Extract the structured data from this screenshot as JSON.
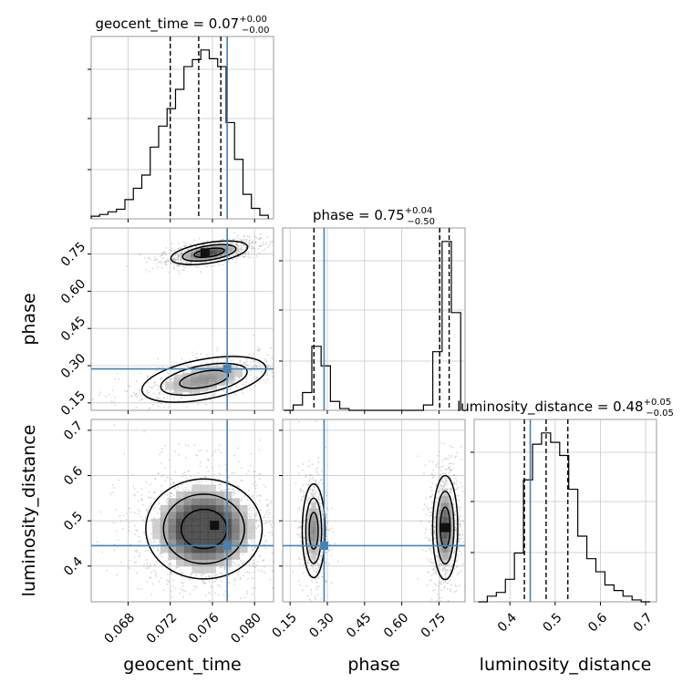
{
  "chart_data": {
    "type": "corner",
    "parameters": [
      {
        "name": "geocent_time",
        "axis_label": "geocent_time",
        "range": [
          0.0645,
          0.0818
        ],
        "ticks": [
          0.068,
          0.072,
          0.076,
          0.08
        ],
        "tick_labels": [
          "0.068",
          "0.072",
          "0.076",
          "0.080"
        ],
        "title": "geocent_time = 0.07",
        "title_upper": "+0.00",
        "title_lower": "−0.00",
        "quantiles": [
          0.072,
          0.0747,
          0.0768
        ],
        "truth": 0.0774,
        "histogram": {
          "edges": [
            0.0645,
            0.0653,
            0.0661,
            0.0669,
            0.0677,
            0.0685,
            0.0693,
            0.0701,
            0.0709,
            0.0717,
            0.0725,
            0.0733,
            0.0741,
            0.0749,
            0.0757,
            0.0765,
            0.0773,
            0.0781,
            0.0789,
            0.0797,
            0.0805,
            0.0813
          ],
          "counts": [
            0.015,
            0.025,
            0.04,
            0.055,
            0.11,
            0.175,
            0.25,
            0.41,
            0.53,
            0.63,
            0.74,
            0.87,
            0.91,
            0.965,
            0.915,
            0.87,
            0.55,
            0.34,
            0.14,
            0.06,
            0.02
          ]
        }
      },
      {
        "name": "phase",
        "axis_label": "phase",
        "range": [
          0.12,
          0.855
        ],
        "ticks": [
          0.15,
          0.3,
          0.45,
          0.6,
          0.75
        ],
        "tick_labels": [
          "0.15",
          "0.30",
          "0.45",
          "0.60",
          "0.75"
        ],
        "title": "phase = 0.75",
        "title_upper": "+0.04",
        "title_lower": "−0.50",
        "quantiles": [
          0.246,
          0.753,
          0.791
        ],
        "truth": 0.287,
        "histogram": {
          "edges": [
            0.125,
            0.1625,
            0.2,
            0.2375,
            0.275,
            0.3125,
            0.35,
            0.3875,
            0.425,
            0.4625,
            0.5,
            0.5375,
            0.575,
            0.6125,
            0.65,
            0.6875,
            0.725,
            0.7625,
            0.8,
            0.8375
          ],
          "counts": [
            0.0,
            0.03,
            0.1,
            0.36,
            0.25,
            0.05,
            0.01,
            0.0,
            0.0,
            0.0,
            0.0,
            0.0,
            0.0,
            0.0,
            0.0,
            0.03,
            0.33,
            0.95,
            0.55
          ]
        }
      },
      {
        "name": "luminosity_distance",
        "axis_label": "luminosity_distance",
        "range": [
          0.321,
          0.724
        ],
        "ticks": [
          0.4,
          0.5,
          0.6,
          0.7
        ],
        "tick_labels": [
          "0.4",
          "0.5",
          "0.6",
          "0.7"
        ],
        "title": "luminosity_distance = 0.48",
        "title_upper": "+0.05",
        "title_lower": "−0.05",
        "quantiles": [
          0.432,
          0.48,
          0.528
        ],
        "truth": 0.445,
        "histogram": {
          "edges": [
            0.33,
            0.35,
            0.37,
            0.39,
            0.41,
            0.43,
            0.45,
            0.47,
            0.49,
            0.51,
            0.53,
            0.55,
            0.57,
            0.59,
            0.61,
            0.63,
            0.65,
            0.67,
            0.69,
            0.71
          ],
          "counts": [
            0.0,
            0.03,
            0.05,
            0.12,
            0.26,
            0.65,
            0.84,
            0.9,
            0.85,
            0.78,
            0.6,
            0.35,
            0.23,
            0.16,
            0.09,
            0.06,
            0.03,
            0.01,
            0.0
          ]
        }
      }
    ],
    "pairs": [
      {
        "x_param": 0,
        "y_param": 1,
        "modes": [
          {
            "cx": 0.0757,
            "cy": 0.755,
            "sx": 0.0016,
            "sy": 0.018,
            "weight": 0.62
          },
          {
            "cx": 0.0752,
            "cy": 0.245,
            "sx": 0.0026,
            "sy": 0.035,
            "weight": 0.38
          }
        ],
        "peak": [
          0.0753,
          0.755
        ],
        "truth": [
          0.0774,
          0.287
        ]
      },
      {
        "x_param": 0,
        "y_param": 2,
        "modes": [
          {
            "cx": 0.0752,
            "cy": 0.482,
            "sx": 0.0024,
            "sy": 0.048,
            "weight": 1.0
          }
        ],
        "peak": [
          0.0762,
          0.49
        ],
        "truth": [
          0.0774,
          0.445
        ]
      },
      {
        "x_param": 1,
        "y_param": 2,
        "modes": [
          {
            "cx": 0.775,
            "cy": 0.485,
            "sx": 0.022,
            "sy": 0.05,
            "weight": 0.6
          },
          {
            "cx": 0.245,
            "cy": 0.478,
            "sx": 0.02,
            "sy": 0.045,
            "weight": 0.4
          }
        ],
        "peak": [
          0.775,
          0.485
        ],
        "truth": [
          0.287,
          0.445
        ]
      }
    ],
    "quantile_levels": [
      0.16,
      0.5,
      0.84
    ],
    "contour_levels": [
      0.39,
      0.86
    ],
    "colors": {
      "truth": "#4682b4",
      "contour": "#000000",
      "histogram": "#000000",
      "quantile": "#000000",
      "grid": "#c8c8c8",
      "points": "#8c8c8c"
    },
    "grid": true
  }
}
